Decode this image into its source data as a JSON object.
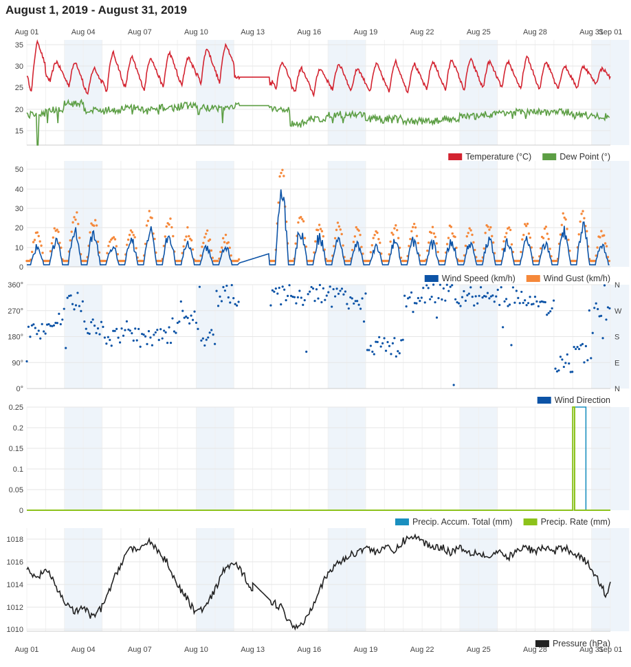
{
  "title": "August 1, 2019 - August 31, 2019",
  "colors": {
    "temperature": "#d32330",
    "dew_point": "#5c9e44",
    "wind_speed": "#0c53a6",
    "wind_gust": "#f5883a",
    "wind_direction": "#0c53a6",
    "precip_accum": "#1a8fbf",
    "precip_rate": "#8cc21a",
    "pressure": "#222222",
    "band": "#eef4fa",
    "grid": "#e6e6e6"
  },
  "x_axis": {
    "top_ticks": [
      "Aug 01",
      "Aug 04",
      "Aug 07",
      "Aug 10",
      "Aug 13",
      "Aug 16",
      "Aug 19",
      "Aug 22",
      "Aug 25",
      "Aug 28",
      "Aug 31",
      "Sep 01"
    ],
    "bottom_ticks": [
      "Aug 01",
      "Aug 04",
      "Aug 07",
      "Aug 10",
      "Aug 13",
      "Aug 16",
      "Aug 19",
      "Aug 22",
      "Aug 25",
      "Aug 28",
      "Aug 31",
      "Sep 01"
    ]
  },
  "chart_data": [
    {
      "type": "line",
      "panel": "temperature",
      "ylim": [
        12,
        36
      ],
      "yticks": [
        "35",
        "30",
        "25",
        "20",
        "15"
      ],
      "series": [
        {
          "name": "Temperature (°C)",
          "daily_max": [
            35.5,
            31,
            31,
            29.5,
            33,
            32,
            32,
            33,
            32,
            34,
            35,
            27.5,
            27,
            31,
            29.5,
            29.5,
            30.5,
            29.5,
            30.5,
            31,
            30.5,
            31,
            31.5,
            31.5,
            31,
            31,
            32,
            31,
            30,
            30,
            29.5
          ],
          "daily_min": [
            24,
            26.5,
            25.5,
            23.5,
            24,
            25,
            24.5,
            25,
            25.5,
            26,
            26,
            27.5,
            27,
            25,
            24,
            23.5,
            24.5,
            24.5,
            24,
            24,
            24,
            24.5,
            24.5,
            24.5,
            25,
            25,
            24.5,
            24.5,
            25,
            25,
            26
          ]
        },
        {
          "name": "Dew Point (°)",
          "daily_mean": [
            19,
            20,
            21.5,
            20,
            20,
            20.5,
            20,
            20.5,
            21,
            20.5,
            20.5,
            21,
            21,
            20,
            17,
            18,
            19,
            19,
            18,
            18,
            17.5,
            17.5,
            18,
            18.5,
            19,
            19.5,
            19.5,
            19.5,
            19.5,
            19,
            18.5
          ],
          "daily_low": [
            12,
            17,
            19,
            19,
            19,
            19,
            19,
            19,
            20,
            19,
            17,
            21,
            21,
            19,
            16,
            16,
            17,
            18,
            17,
            17,
            17,
            17,
            17,
            17,
            17,
            18,
            18,
            18,
            18,
            18,
            18.5
          ]
        }
      ]
    },
    {
      "type": "line",
      "panel": "wind",
      "ylim": [
        0,
        54
      ],
      "yticks": [
        "50",
        "40",
        "30",
        "20",
        "10",
        "0"
      ],
      "series": [
        {
          "name": "Wind Speed (km/h)",
          "daily_max": [
            12,
            16,
            22,
            20,
            12,
            16,
            22,
            20,
            14,
            12,
            12,
            4,
            8,
            42,
            22,
            18,
            16,
            14,
            12,
            15,
            16,
            14,
            15,
            14,
            16,
            15,
            16,
            14,
            22,
            25,
            14
          ]
        },
        {
          "name": "Wind Gust (km/h)",
          "daily_max": [
            18,
            22,
            30,
            26,
            16,
            22,
            28,
            26,
            20,
            18,
            16,
            6,
            12,
            52,
            30,
            24,
            22,
            20,
            18,
            22,
            22,
            20,
            22,
            20,
            24,
            22,
            24,
            20,
            28,
            28,
            20
          ]
        }
      ]
    },
    {
      "type": "scatter",
      "panel": "wind_direction",
      "ylim": [
        0,
        360
      ],
      "yticks": [
        "360°",
        "270°",
        "180°",
        "90°",
        "0°"
      ],
      "right_labels": [
        "N",
        "W",
        "S",
        "E",
        "N"
      ],
      "series": [
        {
          "name": "Wind Direction",
          "daily_mean_deg": [
            200,
            250,
            300,
            220,
            180,
            200,
            170,
            180,
            240,
            180,
            330,
            320,
            320,
            325,
            320,
            330,
            320,
            310,
            150,
            140,
            300,
            330,
            330,
            320,
            320,
            320,
            310,
            280,
            90,
            120,
            270
          ]
        }
      ]
    },
    {
      "type": "line",
      "panel": "precipitation",
      "ylim": [
        0,
        0.25
      ],
      "yticks": [
        "0.25",
        "0.2",
        "0.15",
        "0.1",
        "0.05",
        "0"
      ],
      "series": [
        {
          "name": "Precip. Accum. Total (mm)",
          "events": [
            {
              "start_day": 29.0,
              "end_day": 29.7,
              "value": 0.25
            }
          ]
        },
        {
          "name": "Precip. Rate (mm)",
          "events": [
            {
              "start_day": 29.0,
              "end_day": 29.1,
              "value": 0.25
            }
          ]
        }
      ]
    },
    {
      "type": "line",
      "panel": "pressure",
      "ylim": [
        1009.8,
        1019.2
      ],
      "yticks": [
        "1018",
        "1016",
        "1014",
        "1012",
        "1010"
      ],
      "series": [
        {
          "name": "Pressure (hPa)",
          "points": [
            [
              0,
              1015.5
            ],
            [
              0.5,
              1014.5
            ],
            [
              1,
              1015.5
            ],
            [
              1.5,
              1014
            ],
            [
              2,
              1012.5
            ],
            [
              2.6,
              1011.5
            ],
            [
              3,
              1012
            ],
            [
              3.5,
              1011
            ],
            [
              4,
              1012
            ],
            [
              4.5,
              1014
            ],
            [
              5,
              1016
            ],
            [
              5.5,
              1017.5
            ],
            [
              6,
              1017
            ],
            [
              6.5,
              1018.2
            ],
            [
              7,
              1017
            ],
            [
              7.5,
              1016
            ],
            [
              8,
              1014
            ],
            [
              8.6,
              1012.5
            ],
            [
              9,
              1011.5
            ],
            [
              9.5,
              1012
            ],
            [
              10,
              1013.5
            ],
            [
              10.5,
              1015.5
            ],
            [
              11,
              1016
            ],
            [
              11.5,
              1015
            ],
            [
              12,
              1013.5
            ],
            [
              12,
              1014.2
            ],
            [
              13,
              1012.5
            ],
            [
              13.5,
              1012
            ],
            [
              14,
              1010.5
            ],
            [
              14.5,
              1010.2
            ],
            [
              15,
              1011.5
            ],
            [
              15.5,
              1013.5
            ],
            [
              16,
              1015
            ],
            [
              16.5,
              1016
            ],
            [
              17,
              1016.5
            ],
            [
              17.5,
              1017
            ],
            [
              18,
              1017.5
            ],
            [
              18.5,
              1017
            ],
            [
              19,
              1017.5
            ],
            [
              19.5,
              1017
            ],
            [
              20,
              1018
            ],
            [
              20.5,
              1018.5
            ],
            [
              21,
              1018
            ],
            [
              21.5,
              1017.5
            ],
            [
              22,
              1017.5
            ],
            [
              22.5,
              1017
            ],
            [
              23,
              1017.5
            ],
            [
              23.5,
              1017
            ],
            [
              24,
              1017
            ],
            [
              24.5,
              1016.5
            ],
            [
              25,
              1017
            ],
            [
              25.5,
              1016.5
            ],
            [
              26,
              1017
            ],
            [
              26.5,
              1017.5
            ],
            [
              27,
              1017
            ],
            [
              27.5,
              1017.5
            ],
            [
              28,
              1017
            ],
            [
              28.5,
              1017.5
            ],
            [
              29,
              1017
            ],
            [
              29.5,
              1016.5
            ],
            [
              30,
              1015.5
            ],
            [
              30.5,
              1014
            ],
            [
              30.8,
              1013
            ],
            [
              31,
              1014.3
            ]
          ]
        }
      ]
    }
  ],
  "legends": {
    "temperature": [
      "Temperature (°C)",
      "Dew Point (°)"
    ],
    "wind": [
      "Wind Speed (km/h)",
      "Wind Gust (km/h)"
    ],
    "wind_direction": [
      "Wind Direction"
    ],
    "precipitation": [
      "Precip. Accum. Total (mm)",
      "Precip. Rate (mm)"
    ],
    "pressure": [
      "Pressure (hPa)"
    ]
  }
}
